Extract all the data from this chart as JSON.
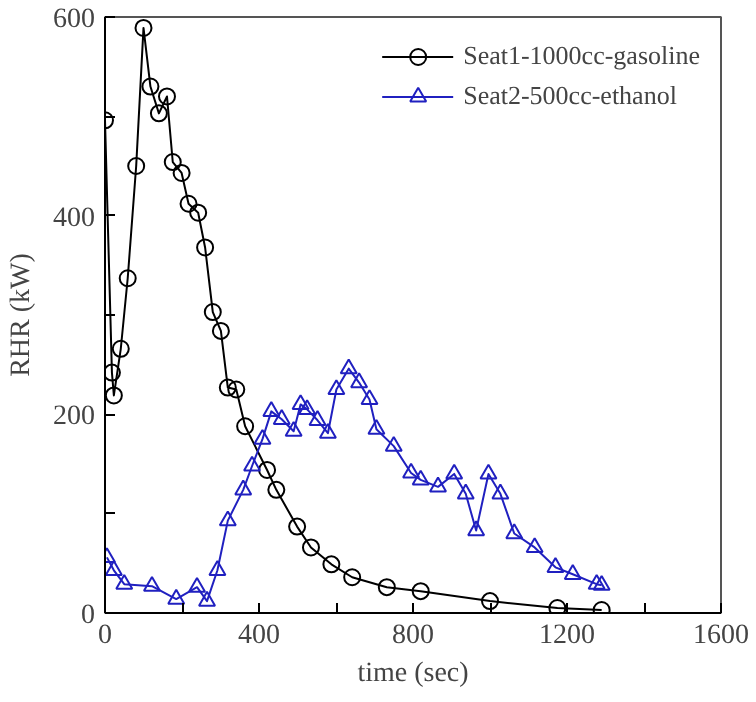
{
  "chart_data": {
    "type": "line",
    "xlabel": "time (sec)",
    "ylabel": "RHR (kW)",
    "xlim": [
      0,
      1600
    ],
    "ylim": [
      0,
      600
    ],
    "xticks": [
      0,
      {
        "value": 200,
        "label": null
      },
      400,
      {
        "value": 600,
        "label": null
      },
      800,
      {
        "value": 1000,
        "label": null
      },
      1200,
      {
        "value": 1400,
        "label": null
      },
      1600
    ],
    "yticks": [
      0,
      {
        "value": 100,
        "label": null
      },
      200,
      {
        "value": 300,
        "label": null
      },
      400,
      {
        "value": 500,
        "label": null
      },
      600
    ],
    "grid": false,
    "legend": "top right",
    "line_style": "solid",
    "series": [
      {
        "name": "Seat1-1000cc-gasoline",
        "color": "#000000",
        "marker": "circle",
        "x": [
          0,
          18,
          23,
          41,
          59,
          81,
          100,
          118,
          140,
          161,
          176,
          199,
          217,
          242,
          260,
          280,
          301,
          319,
          341,
          364,
          421,
          445,
          499,
          535,
          588,
          642,
          732,
          820,
          1000,
          1175,
          1290
        ],
        "values": [
          496,
          242,
          219,
          266,
          337,
          450,
          589,
          530,
          503,
          520,
          454,
          443,
          412,
          403,
          368,
          303,
          284,
          227,
          225,
          188,
          144,
          124,
          87,
          66,
          49,
          36,
          26,
          22,
          12,
          5,
          3
        ]
      },
      {
        "name": "Seat2-500cc-ethanol",
        "color": "#2020c0",
        "marker": "triangle",
        "x": [
          5,
          23,
          50,
          122,
          185,
          239,
          265,
          292,
          319,
          359,
          382,
          409,
          432,
          459,
          490,
          508,
          525,
          552,
          579,
          601,
          633,
          660,
          687,
          705,
          750,
          795,
          820,
          865,
          907,
          937,
          964,
          996,
          1027,
          1063,
          1116,
          1170,
          1215,
          1277,
          1290
        ],
        "values": [
          56,
          43,
          29,
          27,
          14,
          26,
          12,
          43,
          93,
          124,
          148,
          175,
          203,
          195,
          183,
          210,
          205,
          194,
          181,
          225,
          246,
          232,
          215,
          185,
          168,
          141,
          134,
          127,
          140,
          120,
          83,
          140,
          120,
          80,
          66,
          46,
          39,
          29,
          28
        ]
      }
    ]
  }
}
